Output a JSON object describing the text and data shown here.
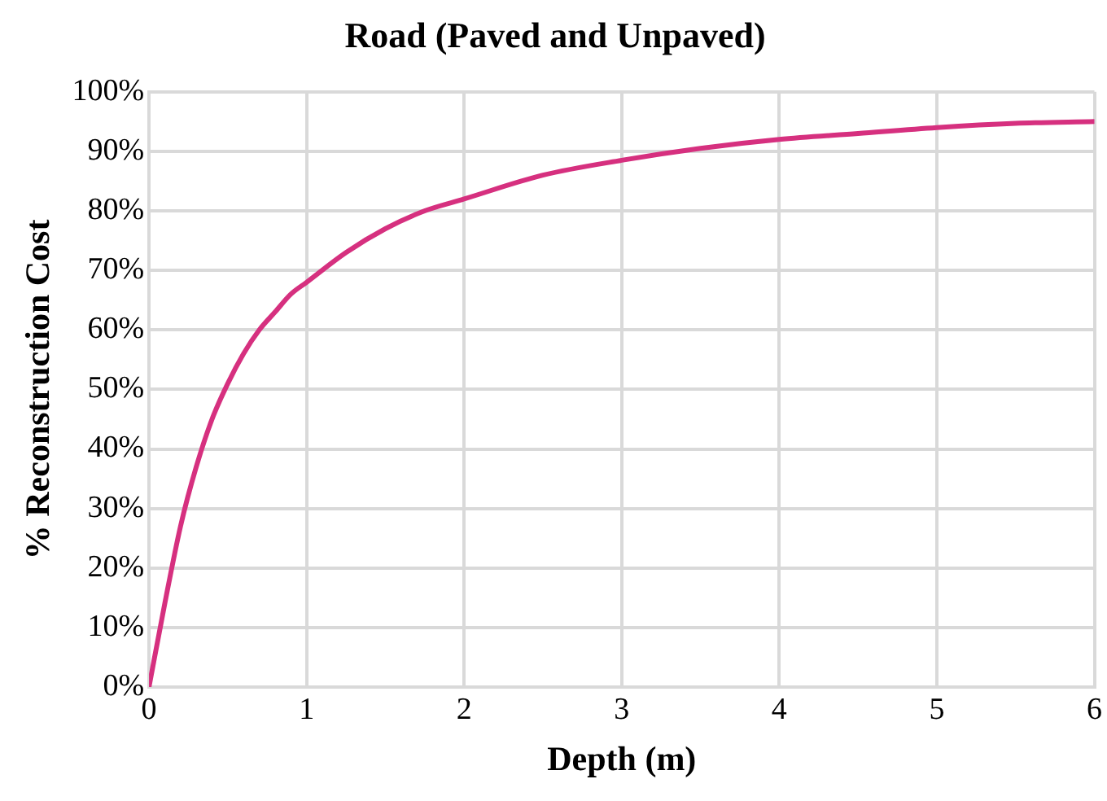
{
  "chart_data": {
    "type": "line",
    "title": "Road (Paved and Unpaved)",
    "xlabel": "Depth (m)",
    "ylabel": "% Reconstruction Cost",
    "series": [
      {
        "color": "#d6307f",
        "x": [
          0,
          0.1,
          0.2,
          0.3,
          0.4,
          0.5,
          0.6,
          0.7,
          0.8,
          0.9,
          1,
          1.25,
          1.5,
          1.75,
          2,
          2.5,
          3,
          3.5,
          4,
          4.5,
          5,
          5.5,
          6
        ],
        "values": [
          0,
          14,
          27,
          37,
          45,
          51,
          56,
          60,
          63,
          66,
          68,
          73,
          77,
          80,
          82,
          86,
          88.5,
          90.5,
          92,
          93,
          94,
          94.7,
          95
        ]
      }
    ],
    "xlim": [
      0,
      6
    ],
    "xticks": [
      0,
      1,
      2,
      3,
      4,
      5,
      6
    ],
    "ylim": [
      0,
      100
    ],
    "yticks": [
      {
        "value": 0,
        "label": "0%"
      },
      {
        "value": 10,
        "label": "10%"
      },
      {
        "value": 20,
        "label": "20%"
      },
      {
        "value": 30,
        "label": "30%"
      },
      {
        "value": 40,
        "label": "40%"
      },
      {
        "value": 50,
        "label": "50%"
      },
      {
        "value": 60,
        "label": "60%"
      },
      {
        "value": 70,
        "label": "70%"
      },
      {
        "value": 80,
        "label": "80%"
      },
      {
        "value": 90,
        "label": "90%"
      },
      {
        "value": 100,
        "label": "100%"
      }
    ],
    "grid": true,
    "legend": false,
    "marker": "none",
    "line_style": "solid"
  }
}
